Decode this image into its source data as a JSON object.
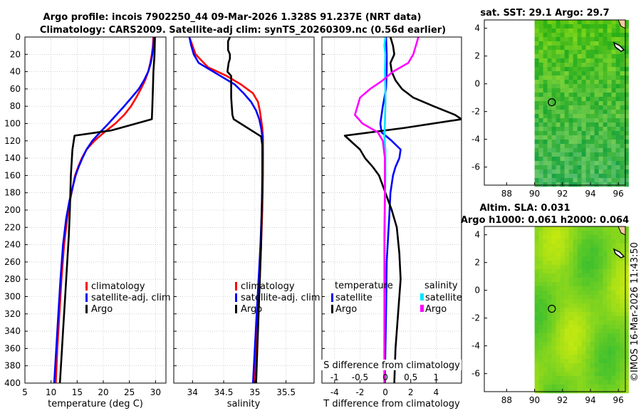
{
  "title": {
    "line1": "Argo profile: incois 7902250_44 09-Mar-2026 1.328S 91.237E (NRT data)",
    "line2": "Climatology: CARS2009. Satellite-adj clim: synTS_20260309.nc (0.56d earlier)"
  },
  "credit": "©IMOS 16-Mar-2026 11:43:50",
  "colors": {
    "climatology": "#ff0000",
    "satellite": "#0000ff",
    "argo": "#000000",
    "sal_satellite": "#00e5ff",
    "sal_argo": "#ff00ff",
    "grid": "#b4b4b4",
    "map_land": "#ffffff",
    "coast": "#f7c8a0"
  },
  "chart_data": [
    {
      "id": "temperature",
      "type": "line",
      "xlabel": "temperature (deg C)",
      "xlim": [
        5,
        32
      ],
      "xticks": [
        5,
        10,
        15,
        20,
        25,
        30
      ],
      "ylim": [
        0,
        400
      ],
      "yticks": [
        0,
        20,
        40,
        60,
        80,
        100,
        120,
        140,
        160,
        180,
        200,
        220,
        240,
        260,
        280,
        300,
        320,
        340,
        360,
        380,
        400
      ],
      "legend": [
        "climatology",
        "satellite-adj. clim",
        "Argo"
      ],
      "series": [
        {
          "name": "climatology",
          "color": "climatology",
          "points": [
            [
              29.6,
              0
            ],
            [
              29.5,
              10
            ],
            [
              29.3,
              20
            ],
            [
              29.0,
              30
            ],
            [
              28.6,
              40
            ],
            [
              28.0,
              50
            ],
            [
              27.2,
              60
            ],
            [
              26.3,
              70
            ],
            [
              25.3,
              80
            ],
            [
              24.0,
              90
            ],
            [
              22.3,
              100
            ],
            [
              20.2,
              110
            ],
            [
              18.3,
              120
            ],
            [
              16.8,
              130
            ],
            [
              15.9,
              140
            ],
            [
              15.2,
              150
            ],
            [
              14.6,
              160
            ],
            [
              14.1,
              175
            ],
            [
              13.6,
              190
            ],
            [
              13.1,
              210
            ],
            [
              12.5,
              240
            ],
            [
              12.0,
              280
            ],
            [
              11.6,
              320
            ],
            [
              11.2,
              360
            ],
            [
              10.9,
              400
            ]
          ]
        },
        {
          "name": "satellite-adj. clim",
          "color": "satellite",
          "points": [
            [
              29.7,
              0
            ],
            [
              29.6,
              10
            ],
            [
              29.4,
              20
            ],
            [
              29.1,
              30
            ],
            [
              28.6,
              40
            ],
            [
              27.8,
              50
            ],
            [
              26.8,
              60
            ],
            [
              25.4,
              70
            ],
            [
              24.0,
              80
            ],
            [
              22.5,
              90
            ],
            [
              21.0,
              100
            ],
            [
              19.4,
              110
            ],
            [
              17.9,
              120
            ],
            [
              16.8,
              130
            ],
            [
              16.0,
              140
            ],
            [
              15.3,
              150
            ],
            [
              14.7,
              160
            ],
            [
              14.1,
              175
            ],
            [
              13.5,
              190
            ],
            [
              12.9,
              210
            ],
            [
              12.3,
              240
            ],
            [
              11.8,
              280
            ],
            [
              11.4,
              320
            ],
            [
              11.0,
              360
            ],
            [
              10.6,
              400
            ]
          ]
        },
        {
          "name": "Argo",
          "color": "argo",
          "points": [
            [
              29.9,
              0
            ],
            [
              29.8,
              20
            ],
            [
              29.6,
              40
            ],
            [
              29.5,
              60
            ],
            [
              29.4,
              80
            ],
            [
              29.3,
              95
            ],
            [
              21.5,
              108
            ],
            [
              14.5,
              114
            ],
            [
              14.1,
              130
            ],
            [
              13.8,
              160
            ],
            [
              13.6,
              200
            ],
            [
              13.4,
              230
            ],
            [
              13.1,
              260
            ],
            [
              12.7,
              300
            ],
            [
              12.3,
              340
            ],
            [
              11.9,
              380
            ],
            [
              11.7,
              400
            ]
          ]
        }
      ]
    },
    {
      "id": "salinity",
      "type": "line",
      "xlabel": "salinity",
      "xlim": [
        33.7,
        35.95
      ],
      "xticks": [
        34,
        34.5,
        35,
        35.5
      ],
      "ylim": [
        0,
        400
      ],
      "legend": [
        "climatology",
        "satellite-adj. clim",
        "Argo"
      ],
      "series": [
        {
          "name": "climatology",
          "color": "climatology",
          "points": [
            [
              33.95,
              0
            ],
            [
              34.0,
              10
            ],
            [
              34.05,
              20
            ],
            [
              34.25,
              35
            ],
            [
              34.55,
              45
            ],
            [
              34.78,
              55
            ],
            [
              34.97,
              65
            ],
            [
              35.05,
              75
            ],
            [
              35.08,
              85
            ],
            [
              35.1,
              95
            ],
            [
              35.12,
              105
            ],
            [
              35.13,
              115
            ],
            [
              35.13,
              135
            ],
            [
              35.13,
              160
            ],
            [
              35.12,
              200
            ],
            [
              35.1,
              240
            ],
            [
              35.08,
              280
            ],
            [
              35.05,
              320
            ],
            [
              35.02,
              360
            ],
            [
              35.0,
              400
            ]
          ]
        },
        {
          "name": "satellite-adj. clim",
          "color": "satellite",
          "points": [
            [
              33.95,
              0
            ],
            [
              33.98,
              10
            ],
            [
              34.02,
              20
            ],
            [
              34.1,
              30
            ],
            [
              34.45,
              45
            ],
            [
              34.68,
              55
            ],
            [
              34.82,
              65
            ],
            [
              34.94,
              75
            ],
            [
              35.02,
              85
            ],
            [
              35.07,
              95
            ],
            [
              35.1,
              105
            ],
            [
              35.12,
              115
            ],
            [
              35.13,
              135
            ],
            [
              35.12,
              160
            ],
            [
              35.11,
              200
            ],
            [
              35.09,
              240
            ],
            [
              35.06,
              280
            ],
            [
              35.03,
              320
            ],
            [
              35.0,
              360
            ],
            [
              34.97,
              400
            ]
          ]
        },
        {
          "name": "Argo",
          "color": "argo",
          "points": [
            [
              34.6,
              0
            ],
            [
              34.57,
              5
            ],
            [
              34.57,
              15
            ],
            [
              34.6,
              20
            ],
            [
              34.6,
              25
            ],
            [
              34.58,
              30
            ],
            [
              34.56,
              40
            ],
            [
              34.62,
              45
            ],
            [
              34.62,
              50
            ],
            [
              34.62,
              70
            ],
            [
              34.64,
              90
            ],
            [
              34.66,
              95
            ],
            [
              35.1,
              115
            ],
            [
              35.12,
              125
            ],
            [
              35.12,
              150
            ],
            [
              35.12,
              180
            ],
            [
              35.11,
              200
            ],
            [
              35.1,
              240
            ],
            [
              35.08,
              280
            ],
            [
              35.06,
              320
            ],
            [
              35.04,
              360
            ],
            [
              35.02,
              400
            ]
          ]
        }
      ]
    },
    {
      "id": "difference",
      "type": "line",
      "xlabel": "T difference from climatology",
      "x2label": "S difference from climatology",
      "xlim": [
        -5,
        6
      ],
      "xticks": [
        -4,
        -2,
        0,
        2,
        4
      ],
      "x2lim": [
        -1.25,
        1.5
      ],
      "x2ticks": [
        -1,
        -0.5,
        0,
        0.5,
        1
      ],
      "x2ticklabels": [
        "-1",
        "-0.5",
        "0",
        "0.5",
        "1"
      ],
      "ylim": [
        0,
        400
      ],
      "legend": {
        "temperature_title": "temperature",
        "salinity_title": "salinity",
        "t_satellite": "satellite",
        "t_argo": "Argo",
        "s_satellite": "satellite",
        "s_argo": "Argo"
      },
      "series": [
        {
          "name": "T satellite",
          "axis": "T",
          "color": "satellite",
          "points": [
            [
              0.05,
              0
            ],
            [
              0.08,
              10
            ],
            [
              0.1,
              20
            ],
            [
              0.1,
              40
            ],
            [
              0.05,
              60
            ],
            [
              -0.2,
              80
            ],
            [
              -0.4,
              100
            ],
            [
              -0.3,
              110
            ],
            [
              0.5,
              120
            ],
            [
              1.2,
              130
            ],
            [
              1.1,
              140
            ],
            [
              0.8,
              150
            ],
            [
              0.6,
              160
            ],
            [
              0.4,
              180
            ],
            [
              0.3,
              210
            ],
            [
              0.1,
              260
            ],
            [
              0.05,
              320
            ],
            [
              0.0,
              360
            ],
            [
              -0.05,
              400
            ]
          ]
        },
        {
          "name": "T Argo",
          "axis": "T",
          "color": "argo",
          "points": [
            [
              0.4,
              0
            ],
            [
              0.6,
              10
            ],
            [
              0.7,
              20
            ],
            [
              0.4,
              30
            ],
            [
              0.5,
              40
            ],
            [
              0.8,
              50
            ],
            [
              1.3,
              60
            ],
            [
              2.2,
              70
            ],
            [
              3.8,
              80
            ],
            [
              5.5,
              90
            ],
            [
              6.0,
              95
            ],
            [
              1.5,
              105
            ],
            [
              -3.2,
              114
            ],
            [
              -2.0,
              130
            ],
            [
              -1.6,
              140
            ],
            [
              -1.0,
              150
            ],
            [
              -0.5,
              160
            ],
            [
              0.0,
              180
            ],
            [
              0.5,
              200
            ],
            [
              0.9,
              220
            ],
            [
              1.1,
              250
            ],
            [
              1.2,
              280
            ],
            [
              1.0,
              320
            ],
            [
              0.8,
              360
            ],
            [
              0.7,
              400
            ]
          ]
        },
        {
          "name": "S satellite",
          "axis": "S",
          "color": "sal_satellite",
          "points": [
            [
              0.0,
              0
            ],
            [
              -0.02,
              10
            ],
            [
              0.0,
              20
            ],
            [
              -0.01,
              40
            ],
            [
              0.0,
              60
            ],
            [
              0.0,
              80
            ],
            [
              -0.01,
              100
            ],
            [
              -0.02,
              115
            ],
            [
              0.0,
              130
            ],
            [
              0.0,
              160
            ],
            [
              -0.01,
              200
            ],
            [
              -0.02,
              250
            ],
            [
              -0.01,
              300
            ],
            [
              -0.02,
              350
            ],
            [
              -0.02,
              400
            ]
          ]
        },
        {
          "name": "S Argo",
          "axis": "S",
          "color": "sal_argo",
          "points": [
            [
              0.65,
              0
            ],
            [
              0.6,
              10
            ],
            [
              0.55,
              20
            ],
            [
              0.45,
              30
            ],
            [
              0.15,
              40
            ],
            [
              -0.05,
              50
            ],
            [
              -0.3,
              60
            ],
            [
              -0.5,
              70
            ],
            [
              -0.55,
              80
            ],
            [
              -0.6,
              90
            ],
            [
              -0.45,
              100
            ],
            [
              -0.15,
              110
            ],
            [
              -0.05,
              120
            ],
            [
              -0.01,
              140
            ],
            [
              -0.01,
              180
            ],
            [
              -0.02,
              230
            ],
            [
              -0.02,
              280
            ],
            [
              -0.02,
              330
            ],
            [
              -0.02,
              380
            ],
            [
              -0.02,
              400
            ]
          ]
        }
      ]
    },
    {
      "id": "sst_map",
      "type": "heatmap",
      "title": "sat. SST: 29.1 Argo: 29.7",
      "xlim": [
        86.4,
        96.5
      ],
      "ylim": [
        -7.3,
        4.6
      ],
      "xticks": [
        88,
        90,
        92,
        94,
        96
      ],
      "yticks": [
        -6,
        -4,
        -2,
        0,
        2,
        4
      ],
      "data_xmin": 90,
      "argo_position": [
        91.237,
        -1.328
      ]
    },
    {
      "id": "sla_map",
      "type": "heatmap",
      "title_line1": "Altim. SLA: 0.031",
      "title_line2": "Argo h1000: 0.061 h2000: 0.064",
      "xlim": [
        86.4,
        96.5
      ],
      "ylim": [
        -7.3,
        4.6
      ],
      "xticks": [
        88,
        90,
        92,
        94,
        96
      ],
      "yticks": [
        -6,
        -4,
        -2,
        0,
        2,
        4
      ],
      "data_xmin": 90,
      "argo_position": [
        91.237,
        -1.328
      ]
    }
  ]
}
